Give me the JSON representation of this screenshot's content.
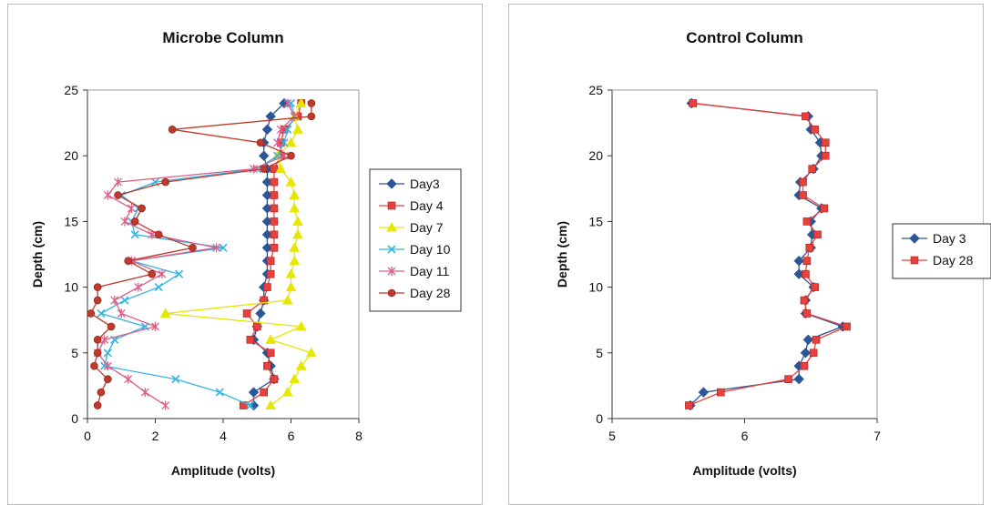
{
  "chart_data": [
    {
      "type": "line",
      "title": "Microbe Column",
      "xlabel": "Amplitude (volts)",
      "ylabel": "Depth (cm)",
      "xlim": [
        0,
        8
      ],
      "ylim": [
        0,
        25
      ],
      "xticks": [
        0,
        2,
        4,
        6,
        8
      ],
      "yticks": [
        0,
        5,
        10,
        15,
        20,
        25
      ],
      "grid": false,
      "legend_position": "right",
      "series": [
        {
          "name": "Day3",
          "color": "#2b5797",
          "marker": "diamond",
          "points": [
            [
              4.9,
              1
            ],
            [
              4.9,
              2
            ],
            [
              5.5,
              3
            ],
            [
              5.4,
              4
            ],
            [
              5.3,
              5
            ],
            [
              4.9,
              6
            ],
            [
              5.0,
              7
            ],
            [
              5.1,
              8
            ],
            [
              5.2,
              9
            ],
            [
              5.2,
              10
            ],
            [
              5.3,
              11
            ],
            [
              5.3,
              12
            ],
            [
              5.3,
              13
            ],
            [
              5.3,
              14
            ],
            [
              5.3,
              15
            ],
            [
              5.3,
              16
            ],
            [
              5.3,
              17
            ],
            [
              5.3,
              18
            ],
            [
              5.3,
              19
            ],
            [
              5.2,
              20
            ],
            [
              5.2,
              21
            ],
            [
              5.3,
              22
            ],
            [
              5.4,
              23
            ],
            [
              5.8,
              24
            ]
          ]
        },
        {
          "name": "Day 4",
          "color": "#e8403c",
          "marker": "square",
          "points": [
            [
              4.6,
              1
            ],
            [
              5.2,
              2
            ],
            [
              5.5,
              3
            ],
            [
              5.3,
              4
            ],
            [
              5.4,
              5
            ],
            [
              4.8,
              6
            ],
            [
              5.0,
              7
            ],
            [
              4.7,
              8
            ],
            [
              5.2,
              9
            ],
            [
              5.3,
              10
            ],
            [
              5.4,
              11
            ],
            [
              5.4,
              12
            ],
            [
              5.5,
              13
            ],
            [
              5.5,
              14
            ],
            [
              5.5,
              15
            ],
            [
              5.5,
              16
            ],
            [
              5.5,
              17
            ],
            [
              5.5,
              18
            ],
            [
              5.5,
              19
            ],
            [
              5.7,
              20
            ],
            [
              5.7,
              21
            ],
            [
              5.8,
              22
            ],
            [
              6.2,
              23
            ],
            [
              6.3,
              24
            ]
          ]
        },
        {
          "name": "Day 7",
          "color": "#e6e600",
          "marker": "triangle",
          "points": [
            [
              5.4,
              1
            ],
            [
              5.9,
              2
            ],
            [
              6.1,
              3
            ],
            [
              6.3,
              4
            ],
            [
              6.6,
              5
            ],
            [
              5.4,
              6
            ],
            [
              6.3,
              7
            ],
            [
              2.3,
              8
            ],
            [
              5.9,
              9
            ],
            [
              6.0,
              10
            ],
            [
              6.0,
              11
            ],
            [
              6.1,
              12
            ],
            [
              6.1,
              13
            ],
            [
              6.2,
              14
            ],
            [
              6.2,
              15
            ],
            [
              6.1,
              16
            ],
            [
              6.1,
              17
            ],
            [
              6.0,
              18
            ],
            [
              5.7,
              19
            ],
            [
              5.6,
              20
            ],
            [
              6.0,
              21
            ],
            [
              6.2,
              22
            ],
            [
              6.1,
              23
            ],
            [
              6.3,
              24
            ]
          ]
        },
        {
          "name": "Day 10",
          "color": "#33b5e5",
          "marker": "x",
          "points": [
            [
              4.8,
              1
            ],
            [
              3.9,
              2
            ],
            [
              2.6,
              3
            ],
            [
              0.5,
              4
            ],
            [
              0.6,
              5
            ],
            [
              0.8,
              6
            ],
            [
              1.7,
              7
            ],
            [
              0.4,
              8
            ],
            [
              1.1,
              9
            ],
            [
              2.1,
              10
            ],
            [
              2.7,
              11
            ],
            [
              1.3,
              12
            ],
            [
              4.0,
              13
            ],
            [
              1.4,
              14
            ],
            [
              1.3,
              15
            ],
            [
              1.5,
              16
            ],
            [
              1.0,
              17
            ],
            [
              2.0,
              18
            ],
            [
              5.0,
              19
            ],
            [
              5.6,
              20
            ],
            [
              5.8,
              21
            ],
            [
              5.9,
              22
            ],
            [
              6.1,
              23
            ],
            [
              6.0,
              24
            ]
          ]
        },
        {
          "name": "Day 11",
          "color": "#d95f8c",
          "marker": "star",
          "points": [
            [
              2.3,
              1
            ],
            [
              1.7,
              2
            ],
            [
              1.2,
              3
            ],
            [
              0.6,
              4
            ],
            [
              0.3,
              5
            ],
            [
              0.5,
              6
            ],
            [
              2.0,
              7
            ],
            [
              1.0,
              8
            ],
            [
              0.8,
              9
            ],
            [
              1.5,
              10
            ],
            [
              2.2,
              11
            ],
            [
              1.3,
              12
            ],
            [
              3.8,
              13
            ],
            [
              1.9,
              14
            ],
            [
              1.1,
              15
            ],
            [
              1.3,
              16
            ],
            [
              0.6,
              17
            ],
            [
              0.9,
              18
            ],
            [
              4.9,
              19
            ],
            [
              5.8,
              20
            ],
            [
              5.6,
              21
            ],
            [
              5.7,
              22
            ],
            [
              6.1,
              23
            ],
            [
              5.9,
              24
            ]
          ]
        },
        {
          "name": "Day 28",
          "color": "#c0392b",
          "marker": "circle",
          "points": [
            [
              0.3,
              1
            ],
            [
              0.4,
              2
            ],
            [
              0.6,
              3
            ],
            [
              0.2,
              4
            ],
            [
              0.3,
              5
            ],
            [
              0.3,
              6
            ],
            [
              0.7,
              7
            ],
            [
              0.1,
              8
            ],
            [
              0.3,
              9
            ],
            [
              0.3,
              10
            ],
            [
              1.9,
              11
            ],
            [
              1.2,
              12
            ],
            [
              3.1,
              13
            ],
            [
              2.1,
              14
            ],
            [
              1.4,
              15
            ],
            [
              1.6,
              16
            ],
            [
              0.9,
              17
            ],
            [
              2.3,
              18
            ],
            [
              5.2,
              19
            ],
            [
              6.0,
              20
            ],
            [
              5.1,
              21
            ],
            [
              2.5,
              22
            ],
            [
              6.6,
              23
            ],
            [
              6.6,
              24
            ]
          ]
        }
      ]
    },
    {
      "type": "line",
      "title": "Control Column",
      "xlabel": "Amplitude (volts)",
      "ylabel": "Depth (cm)",
      "xlim": [
        5,
        7
      ],
      "ylim": [
        0,
        25
      ],
      "xticks": [
        5,
        6,
        7
      ],
      "yticks": [
        0,
        5,
        10,
        15,
        20,
        25
      ],
      "grid": false,
      "legend_position": "right",
      "series": [
        {
          "name": "Day 3",
          "color": "#2b5797",
          "marker": "diamond",
          "points": [
            [
              5.59,
              1
            ],
            [
              5.69,
              2
            ],
            [
              6.41,
              3
            ],
            [
              6.41,
              4
            ],
            [
              6.46,
              5
            ],
            [
              6.48,
              6
            ],
            [
              6.74,
              7
            ],
            [
              6.46,
              8
            ],
            [
              6.46,
              9
            ],
            [
              6.52,
              10
            ],
            [
              6.41,
              11
            ],
            [
              6.41,
              12
            ],
            [
              6.5,
              13
            ],
            [
              6.51,
              14
            ],
            [
              6.5,
              15
            ],
            [
              6.58,
              16
            ],
            [
              6.41,
              17
            ],
            [
              6.42,
              18
            ],
            [
              6.52,
              19
            ],
            [
              6.58,
              20
            ],
            [
              6.57,
              21
            ],
            [
              6.5,
              22
            ],
            [
              6.48,
              23
            ],
            [
              5.6,
              24
            ]
          ]
        },
        {
          "name": "Day 28",
          "color": "#e8403c",
          "marker": "square",
          "points": [
            [
              5.58,
              1
            ],
            [
              5.82,
              2
            ],
            [
              6.33,
              3
            ],
            [
              6.45,
              4
            ],
            [
              6.52,
              5
            ],
            [
              6.54,
              6
            ],
            [
              6.77,
              7
            ],
            [
              6.47,
              8
            ],
            [
              6.45,
              9
            ],
            [
              6.53,
              10
            ],
            [
              6.46,
              11
            ],
            [
              6.47,
              12
            ],
            [
              6.49,
              13
            ],
            [
              6.55,
              14
            ],
            [
              6.47,
              15
            ],
            [
              6.6,
              16
            ],
            [
              6.44,
              17
            ],
            [
              6.44,
              18
            ],
            [
              6.51,
              19
            ],
            [
              6.61,
              20
            ],
            [
              6.61,
              21
            ],
            [
              6.53,
              22
            ],
            [
              6.46,
              23
            ],
            [
              5.61,
              24
            ]
          ]
        }
      ]
    }
  ]
}
